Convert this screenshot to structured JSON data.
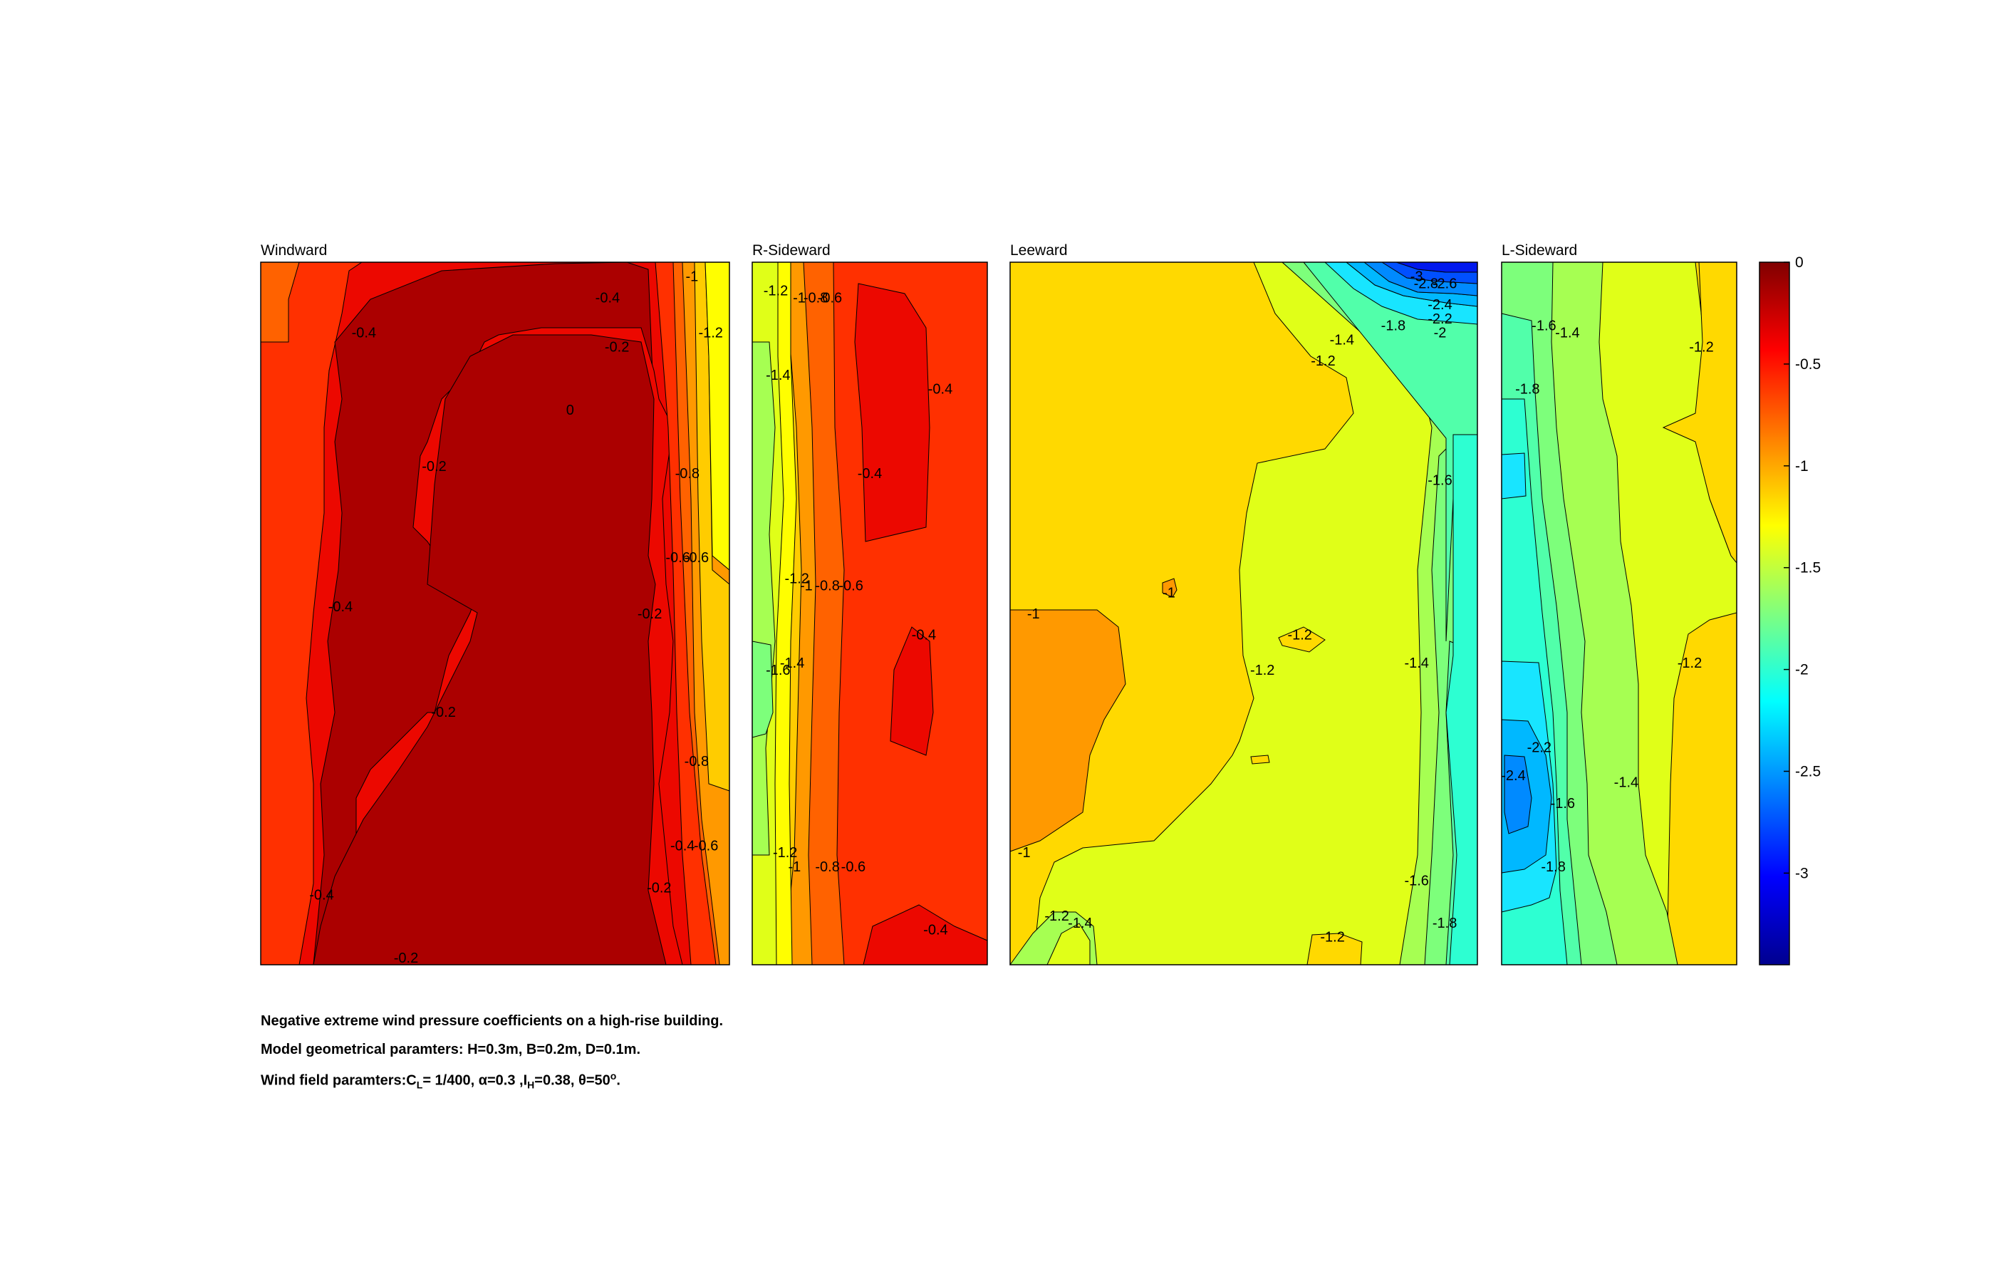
{
  "chart_data": {
    "type": "heatmap",
    "subtype": "filled contour",
    "colormap": "jet",
    "colorbar": {
      "range": [
        -3.45,
        0
      ],
      "ticks": [
        0,
        -0.5,
        -1,
        -1.5,
        -2,
        -2.5,
        -3
      ],
      "tick_labels": [
        "0",
        "-0.5",
        "-1",
        "-1.5",
        "-2",
        "-2.5",
        "-3"
      ]
    },
    "panels": [
      {
        "title": "Windward",
        "width_units": 2,
        "contour_labels": [
          {
            "x": 0.74,
            "y": 0.05,
            "text": "-0.4"
          },
          {
            "x": 0.22,
            "y": 0.1,
            "text": "-0.4"
          },
          {
            "x": 0.76,
            "y": 0.12,
            "text": "-0.2"
          },
          {
            "x": 0.92,
            "y": 0.02,
            "text": "-1"
          },
          {
            "x": 0.96,
            "y": 0.1,
            "text": "-1.2"
          },
          {
            "x": 0.66,
            "y": 0.21,
            "text": "0"
          },
          {
            "x": 0.37,
            "y": 0.29,
            "text": "-0.2"
          },
          {
            "x": 0.91,
            "y": 0.3,
            "text": "-0.8"
          },
          {
            "x": 0.89,
            "y": 0.42,
            "text": "-0.6"
          },
          {
            "x": 0.93,
            "y": 0.42,
            "text": "-0.6"
          },
          {
            "x": 0.17,
            "y": 0.49,
            "text": "-0.4"
          },
          {
            "x": 0.83,
            "y": 0.5,
            "text": "-0.2"
          },
          {
            "x": 0.39,
            "y": 0.64,
            "text": "-0.2"
          },
          {
            "x": 0.93,
            "y": 0.71,
            "text": "-0.8"
          },
          {
            "x": 0.9,
            "y": 0.83,
            "text": "-0.4"
          },
          {
            "x": 0.95,
            "y": 0.83,
            "text": "-0.6"
          },
          {
            "x": 0.13,
            "y": 0.9,
            "text": "-0.4"
          },
          {
            "x": 0.85,
            "y": 0.89,
            "text": "-0.2"
          },
          {
            "x": 0.31,
            "y": 0.99,
            "text": "-0.2"
          }
        ]
      },
      {
        "title": "R-Sideward",
        "width_units": 1,
        "contour_labels": [
          {
            "x": 0.1,
            "y": 0.04,
            "text": "-1.2"
          },
          {
            "x": 0.2,
            "y": 0.05,
            "text": "-1"
          },
          {
            "x": 0.27,
            "y": 0.05,
            "text": "-0.8"
          },
          {
            "x": 0.33,
            "y": 0.05,
            "text": "-0.6"
          },
          {
            "x": 0.11,
            "y": 0.16,
            "text": "-1.4"
          },
          {
            "x": 0.8,
            "y": 0.18,
            "text": "-0.4"
          },
          {
            "x": 0.5,
            "y": 0.3,
            "text": "-0.4"
          },
          {
            "x": 0.19,
            "y": 0.45,
            "text": "-1.2"
          },
          {
            "x": 0.23,
            "y": 0.46,
            "text": "-1"
          },
          {
            "x": 0.32,
            "y": 0.46,
            "text": "-0.8"
          },
          {
            "x": 0.42,
            "y": 0.46,
            "text": "-0.6"
          },
          {
            "x": 0.73,
            "y": 0.53,
            "text": "-0.4"
          },
          {
            "x": 0.11,
            "y": 0.58,
            "text": "-1.6"
          },
          {
            "x": 0.17,
            "y": 0.57,
            "text": "-1.4"
          },
          {
            "x": 0.14,
            "y": 0.84,
            "text": "-1.2"
          },
          {
            "x": 0.18,
            "y": 0.86,
            "text": "-1"
          },
          {
            "x": 0.32,
            "y": 0.86,
            "text": "-0.8"
          },
          {
            "x": 0.43,
            "y": 0.86,
            "text": "-0.6"
          },
          {
            "x": 0.78,
            "y": 0.95,
            "text": "-0.4"
          }
        ]
      },
      {
        "title": "Leeward",
        "width_units": 2,
        "contour_labels": [
          {
            "x": 0.87,
            "y": 0.02,
            "text": "-3"
          },
          {
            "x": 0.89,
            "y": 0.03,
            "text": "-2.8"
          },
          {
            "x": 0.93,
            "y": 0.03,
            "text": "-2.6"
          },
          {
            "x": 0.92,
            "y": 0.06,
            "text": "-2.4"
          },
          {
            "x": 0.92,
            "y": 0.08,
            "text": "-2.2"
          },
          {
            "x": 0.92,
            "y": 0.1,
            "text": "-2"
          },
          {
            "x": 0.82,
            "y": 0.09,
            "text": "-1.8"
          },
          {
            "x": 0.71,
            "y": 0.11,
            "text": "-1.4"
          },
          {
            "x": 0.67,
            "y": 0.14,
            "text": "-1.2"
          },
          {
            "x": 0.92,
            "y": 0.31,
            "text": "-1.6"
          },
          {
            "x": 0.34,
            "y": 0.47,
            "text": "-1"
          },
          {
            "x": 0.05,
            "y": 0.5,
            "text": "-1"
          },
          {
            "x": 0.62,
            "y": 0.53,
            "text": "-1.2"
          },
          {
            "x": 0.54,
            "y": 0.58,
            "text": "-1.2"
          },
          {
            "x": 0.87,
            "y": 0.57,
            "text": "-1.4"
          },
          {
            "x": 0.03,
            "y": 0.84,
            "text": "-1"
          },
          {
            "x": 0.87,
            "y": 0.88,
            "text": "-1.6"
          },
          {
            "x": 0.1,
            "y": 0.93,
            "text": "-1.2"
          },
          {
            "x": 0.15,
            "y": 0.94,
            "text": "-1.4"
          },
          {
            "x": 0.93,
            "y": 0.94,
            "text": "-1.8"
          },
          {
            "x": 0.69,
            "y": 0.96,
            "text": "-1.2"
          }
        ]
      },
      {
        "title": "L-Sideward",
        "width_units": 1,
        "contour_labels": [
          {
            "x": 0.18,
            "y": 0.09,
            "text": "-1.6"
          },
          {
            "x": 0.28,
            "y": 0.1,
            "text": "-1.4"
          },
          {
            "x": 0.85,
            "y": 0.12,
            "text": "-1.2"
          },
          {
            "x": 0.11,
            "y": 0.18,
            "text": "-1.8"
          },
          {
            "x": 0.8,
            "y": 0.57,
            "text": "-1.2"
          },
          {
            "x": 0.16,
            "y": 0.69,
            "text": "-2.2"
          },
          {
            "x": 0.05,
            "y": 0.73,
            "text": "-2.4"
          },
          {
            "x": 0.53,
            "y": 0.74,
            "text": "-1.4"
          },
          {
            "x": 0.26,
            "y": 0.77,
            "text": "-1.6"
          },
          {
            "x": 0.22,
            "y": 0.86,
            "text": "-1.8"
          }
        ]
      }
    ],
    "caption": {
      "line1": "Negative extreme wind pressure coefficients on a high-rise building.",
      "line2": "Model geometrical paramters: H=0.3m, B=0.2m, D=0.1m.",
      "line3_prefix": "Wind field paramters:C",
      "line3_sub1": "L",
      "line3_mid1": "= 1/400, α=0.3 ,I",
      "line3_sub2": "H",
      "line3_mid2": "=0.38, θ=50",
      "line3_sup": "o",
      "line3_end": "."
    }
  }
}
